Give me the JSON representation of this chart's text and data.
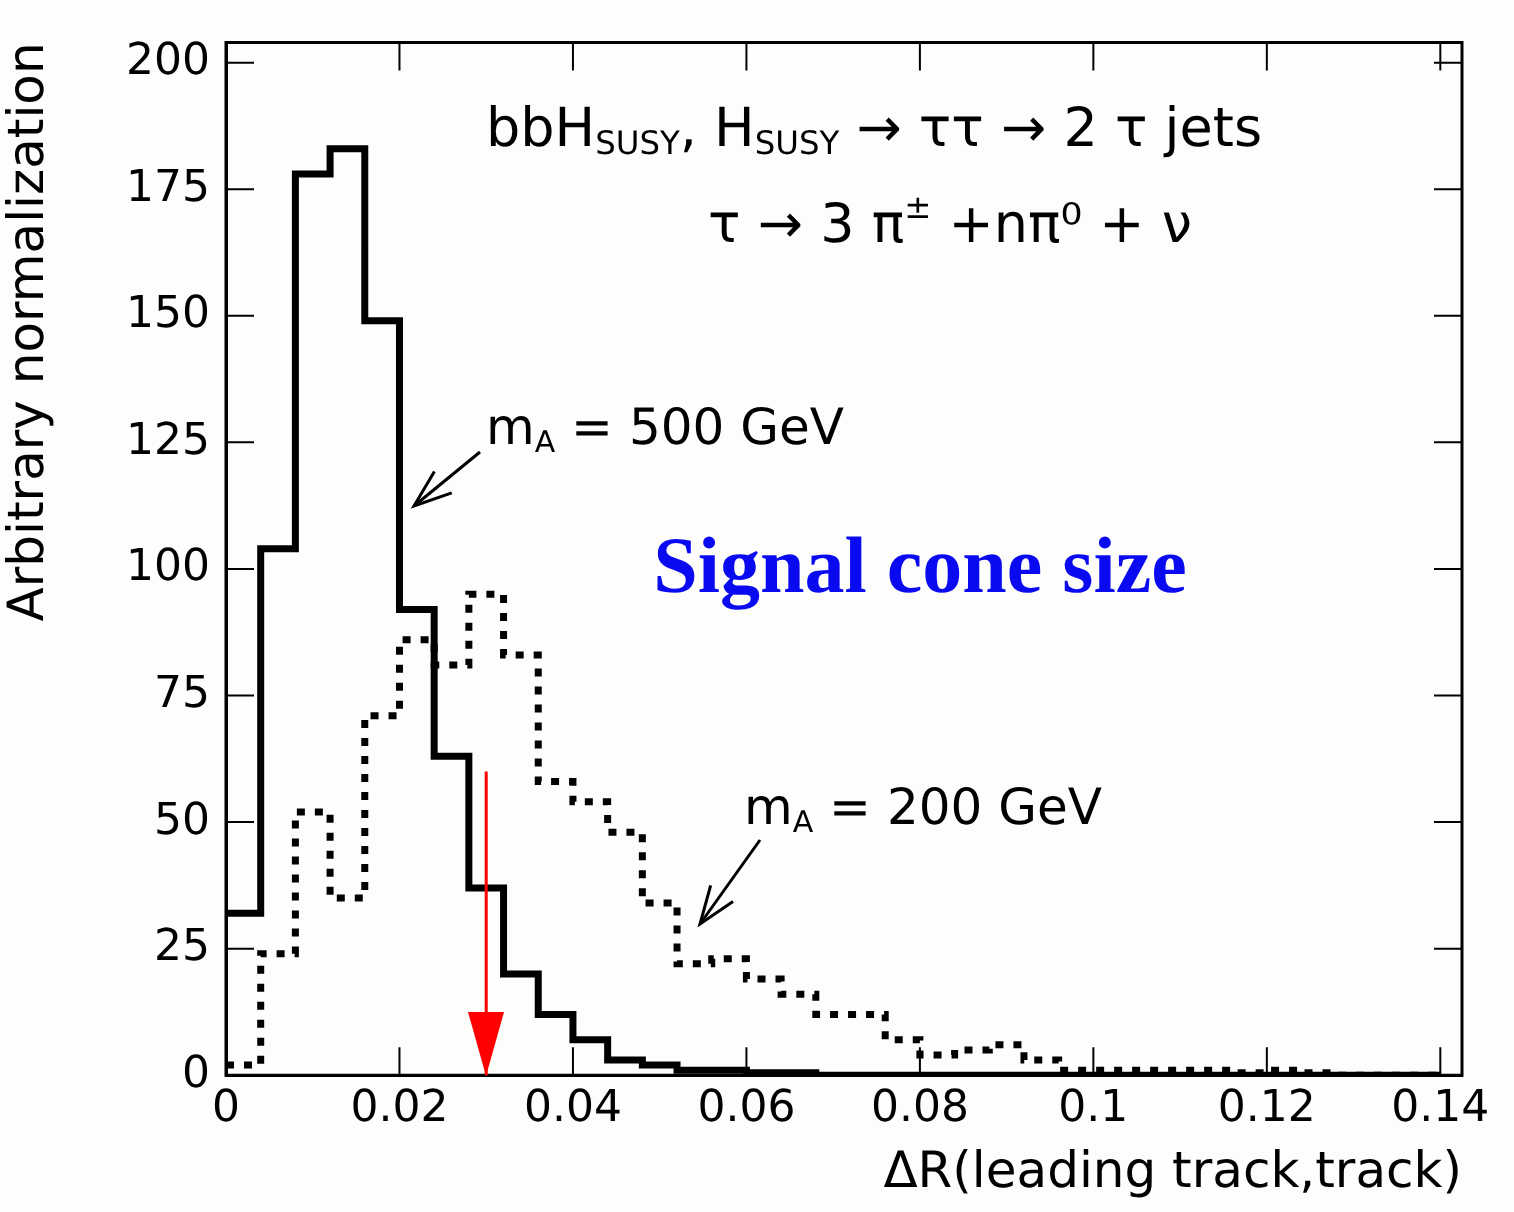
{
  "chart_data": {
    "type": "histogram",
    "xlabel": "ΔR(leading track,track)",
    "ylabel": "Arbitrary normalization",
    "bins": [
      0,
      0.004,
      0.008,
      0.012,
      0.016,
      0.02,
      0.024,
      0.028,
      0.032,
      0.036,
      0.04,
      0.044,
      0.048,
      0.052,
      0.056,
      0.06,
      0.064,
      0.068,
      0.072,
      0.076,
      0.08,
      0.084,
      0.088,
      0.092,
      0.096,
      0.1,
      0.104,
      0.108,
      0.112,
      0.116,
      0.12,
      0.124,
      0.128,
      0.132,
      0.136,
      0.14
    ],
    "series": [
      {
        "name": "m$_{A}$ = 500 GeV",
        "color": "#000000",
        "line_style": "solid",
        "values": [
          32,
          104,
          178,
          183,
          149,
          92,
          63,
          37,
          20,
          12,
          7,
          3,
          2,
          1,
          1,
          0.5,
          0.5,
          0,
          0,
          0,
          0,
          0,
          0,
          0,
          0,
          0,
          0,
          0,
          0,
          0,
          0,
          0,
          0,
          0,
          0
        ]
      },
      {
        "name": "m$_{A}$ = 200 GeV",
        "color": "#000000",
        "line_style": "dotted",
        "values": [
          2,
          24,
          52,
          35,
          71,
          86,
          81,
          95,
          83,
          58,
          54,
          48,
          34,
          22,
          23,
          19,
          16,
          12,
          12,
          7,
          4,
          5,
          6,
          3,
          1,
          1,
          1,
          1,
          1,
          0.5,
          1,
          0.5,
          0,
          0,
          0
        ]
      }
    ],
    "xlim": [
      0,
      0.1425
    ],
    "ylim": [
      0,
      204
    ],
    "xticks": [
      0,
      0.02,
      0.04,
      0.06,
      0.08,
      0.1,
      0.12,
      0.14
    ],
    "yticks": [
      0,
      25,
      50,
      75,
      100,
      125,
      150,
      175,
      200
    ],
    "grid": false,
    "legend": false,
    "ref_lines": [
      {
        "axis": "x",
        "value": 0.03,
        "label": "Signal cone size",
        "color": "#ff0000"
      }
    ],
    "annotations": [
      "bbH$_{SUSY}$, H$_{SUSY}$ → ττ → 2 τ jets",
      "τ → 3 π$^{±}$ +nπ⁰ + ν"
    ]
  }
}
